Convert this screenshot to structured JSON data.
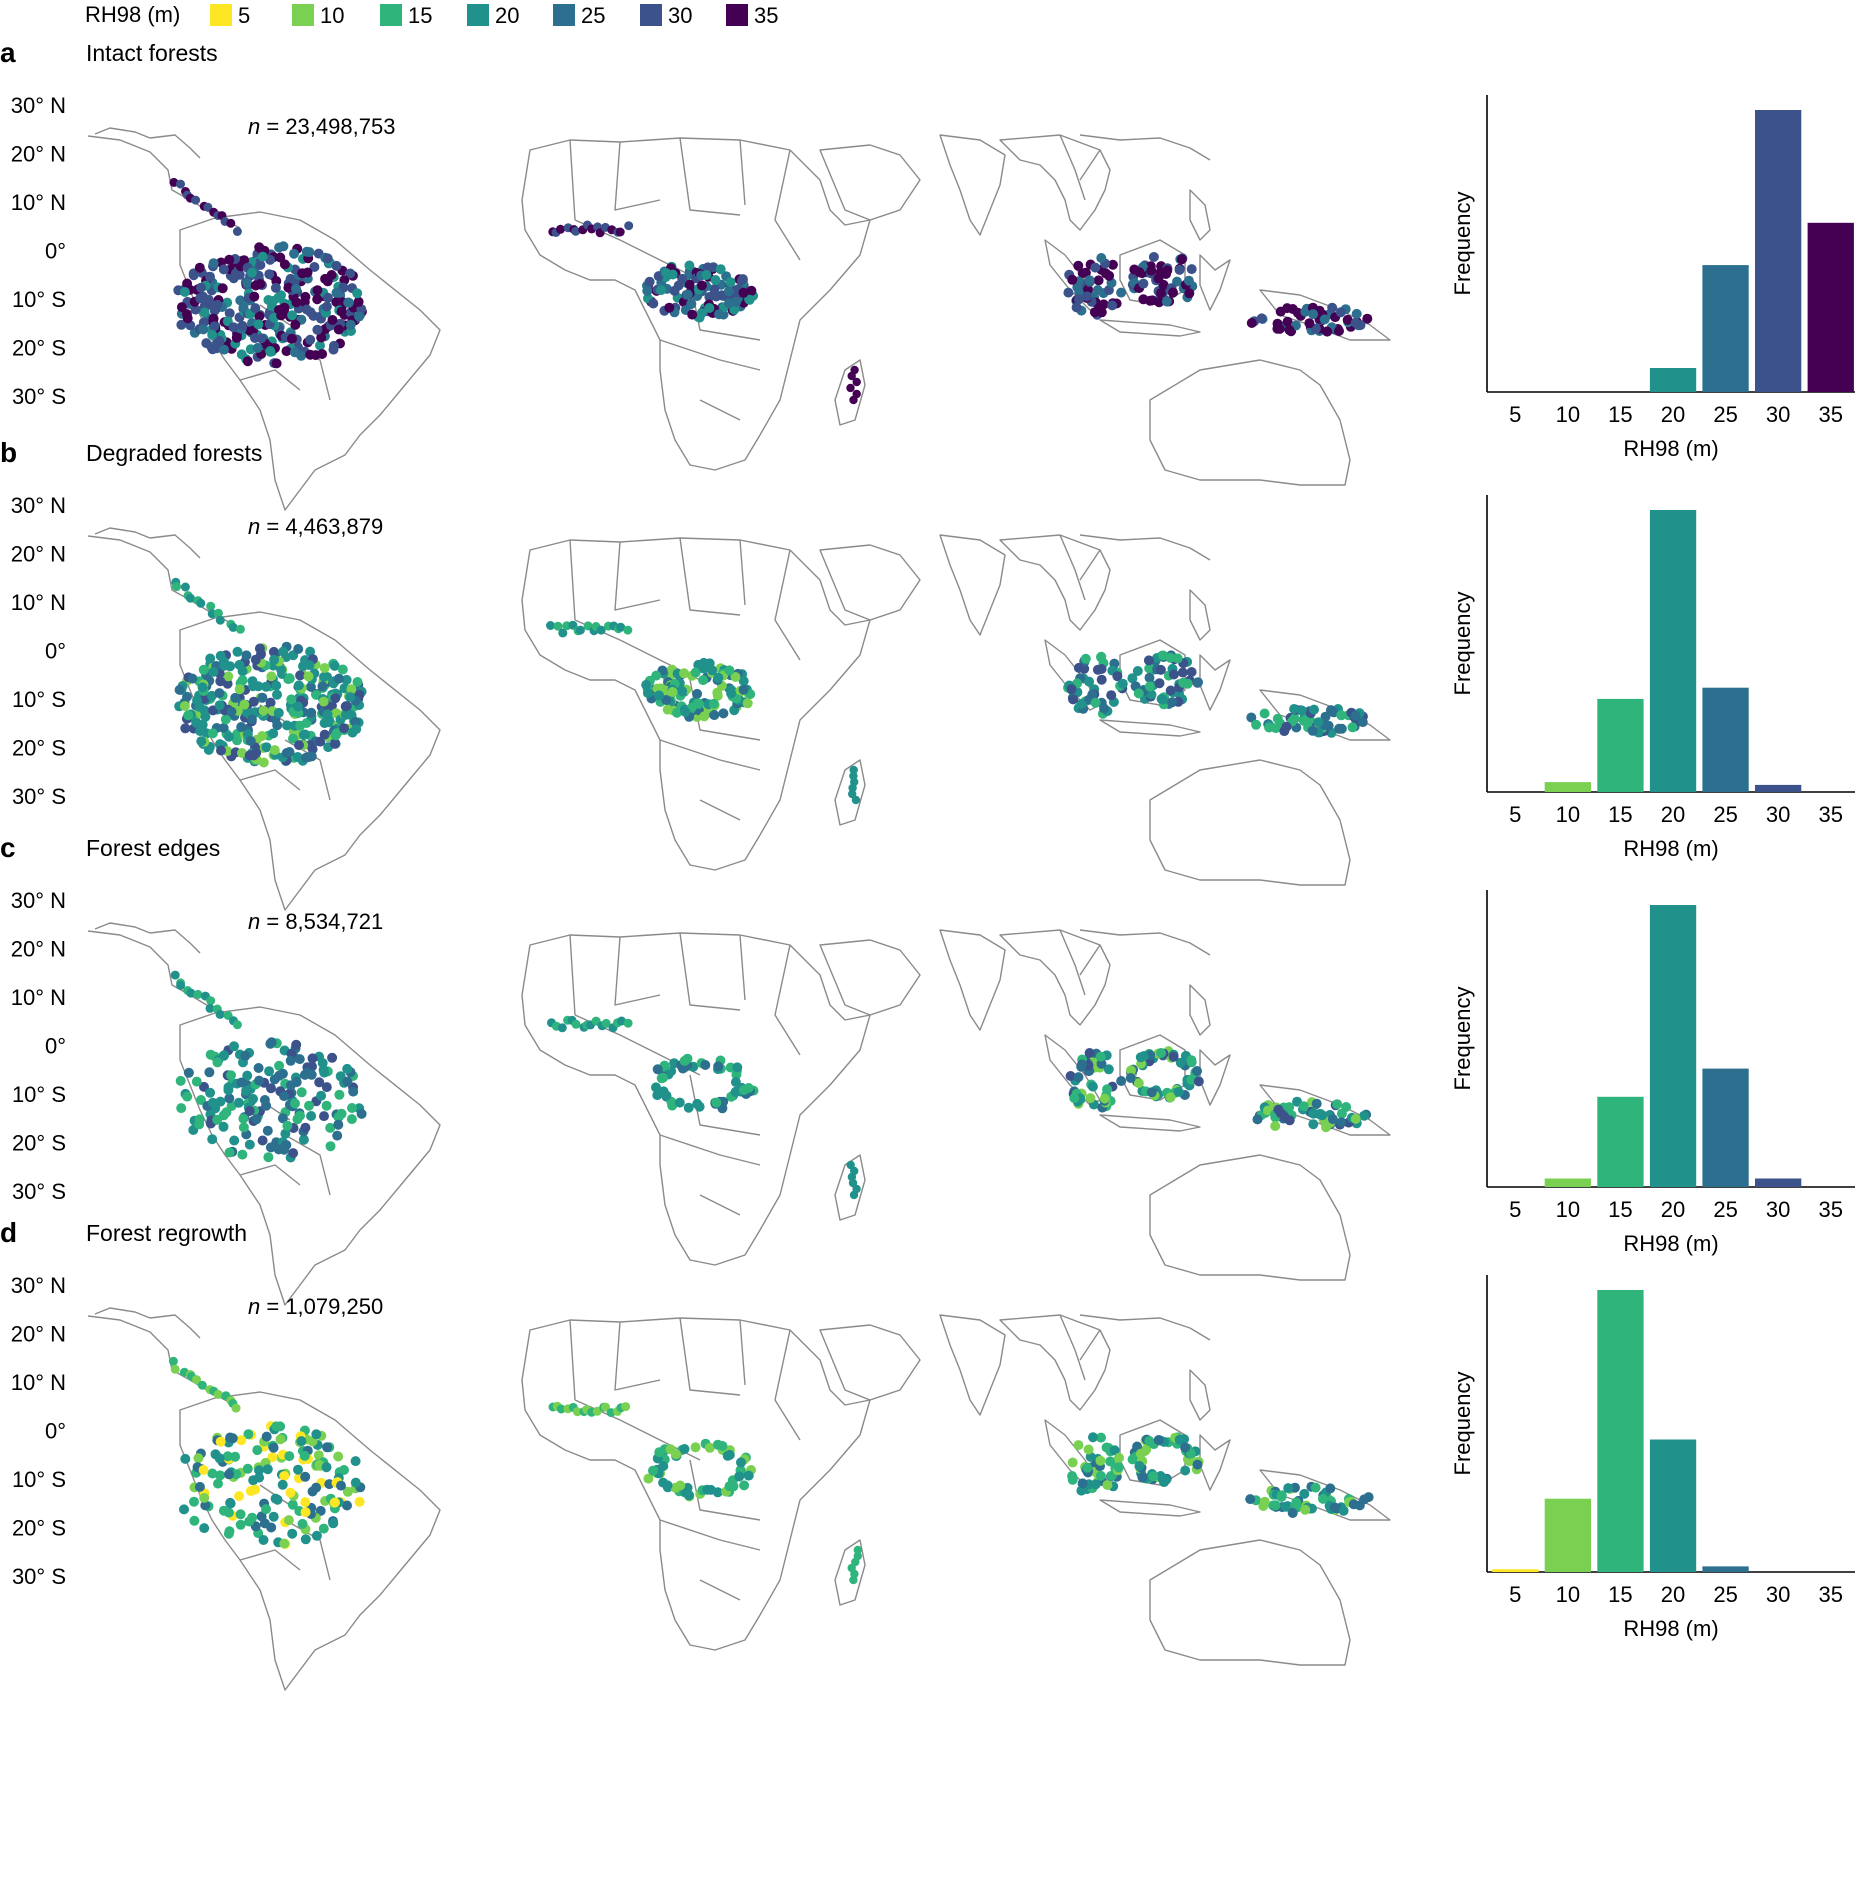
{
  "legend": {
    "title": "RH98 (m)",
    "items": [
      {
        "label": "5",
        "color": "#fde725"
      },
      {
        "label": "10",
        "color": "#7ad151"
      },
      {
        "label": "15",
        "color": "#2fb47c"
      },
      {
        "label": "20",
        "color": "#21918c"
      },
      {
        "label": "25",
        "color": "#2c6f8e"
      },
      {
        "label": "30",
        "color": "#3b528b"
      },
      {
        "label": "35",
        "color": "#440154"
      }
    ]
  },
  "lat_labels": [
    "30° N",
    "20° N",
    "10° N",
    "0°",
    "10° S",
    "20° S",
    "30° S"
  ],
  "chart_data": [
    {
      "panel": "a",
      "title": "Intact forests",
      "n_label": "n = 23,498,753",
      "type": "bar",
      "categories": [
        "5",
        "10",
        "15",
        "20",
        "25",
        "30",
        "35"
      ],
      "values": [
        0,
        0,
        0,
        0.085,
        0.45,
        1.0,
        0.6
      ],
      "xlabel": "RH98 (m)",
      "ylabel": "Frequency"
    },
    {
      "panel": "b",
      "title": "Degraded forests",
      "n_label": "n = 4,463,879",
      "type": "bar",
      "categories": [
        "5",
        "10",
        "15",
        "20",
        "25",
        "30",
        "35"
      ],
      "values": [
        0,
        0.035,
        0.33,
        1.0,
        0.37,
        0.025,
        0
      ],
      "xlabel": "RH98 (m)",
      "ylabel": "Frequency"
    },
    {
      "panel": "c",
      "title": "Forest edges",
      "n_label": "n = 8,534,721",
      "type": "bar",
      "categories": [
        "5",
        "10",
        "15",
        "20",
        "25",
        "30",
        "35"
      ],
      "values": [
        0,
        0.03,
        0.32,
        1.0,
        0.42,
        0.03,
        0
      ],
      "xlabel": "RH98 (m)",
      "ylabel": "Frequency"
    },
    {
      "panel": "d",
      "title": "Forest regrowth",
      "n_label": "n = 1,079,250",
      "type": "bar",
      "categories": [
        "5",
        "10",
        "15",
        "20",
        "25",
        "30",
        "35"
      ],
      "values": [
        0.01,
        0.26,
        1.0,
        0.47,
        0.02,
        0,
        0
      ],
      "xlabel": "RH98 (m)",
      "ylabel": "Frequency"
    }
  ],
  "map_clusters": {
    "a": {
      "amazon": [
        "#3b528b",
        "#440154",
        "#2c6f8e",
        "#3b528b",
        "#21918c",
        "#440154"
      ],
      "africa": [
        "#3b528b",
        "#440154",
        "#21918c",
        "#2c6f8e"
      ],
      "asia": [
        "#440154",
        "#3b528b",
        "#440154",
        "#2c6f8e"
      ],
      "scatter": [
        "#440154",
        "#3b528b"
      ]
    },
    "b": {
      "amazon": [
        "#21918c",
        "#2fb47c",
        "#2c6f8e",
        "#7ad151",
        "#21918c",
        "#3b528b"
      ],
      "africa": [
        "#21918c",
        "#2fb47c",
        "#7ad151",
        "#2c6f8e"
      ],
      "asia": [
        "#21918c",
        "#2c6f8e",
        "#2fb47c",
        "#3b528b"
      ],
      "scatter": [
        "#21918c",
        "#2fb47c"
      ]
    },
    "c": {
      "amazon": [
        "#21918c",
        "#2c6f8e",
        "#2fb47c",
        "#3b528b"
      ],
      "africa": [
        "#2c6f8e",
        "#21918c",
        "#2fb47c"
      ],
      "asia": [
        "#21918c",
        "#2fb47c",
        "#2c6f8e",
        "#7ad151",
        "#3b528b"
      ],
      "scatter": [
        "#21918c",
        "#2fb47c"
      ]
    },
    "d": {
      "amazon": [
        "#2fb47c",
        "#21918c",
        "#7ad151",
        "#2c6f8e",
        "#fde725"
      ],
      "africa": [
        "#2fb47c",
        "#7ad151",
        "#21918c"
      ],
      "asia": [
        "#2fb47c",
        "#7ad151",
        "#21918c",
        "#2c6f8e"
      ],
      "scatter": [
        "#2fb47c",
        "#7ad151"
      ]
    }
  }
}
